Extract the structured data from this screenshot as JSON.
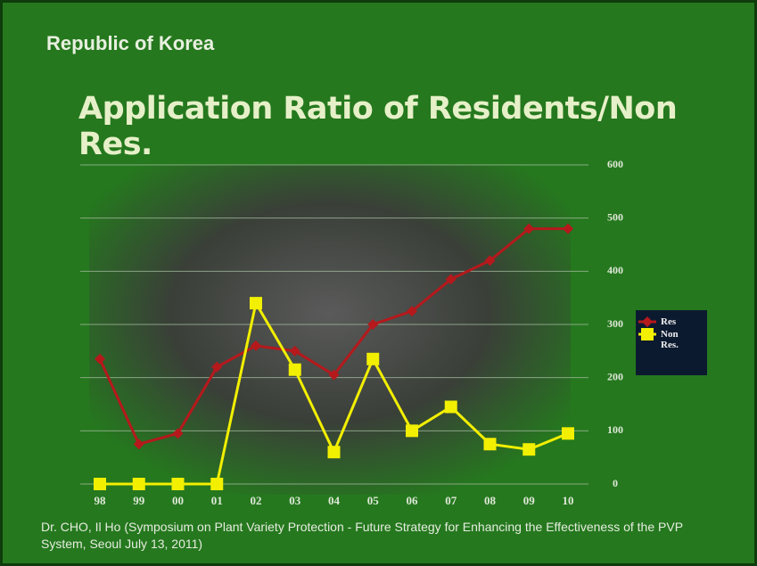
{
  "subtitle": "Republic of Korea",
  "chart_data": {
    "type": "line",
    "title": "Application Ratio of Residents/Non Res.",
    "categories": [
      "98",
      "99",
      "00",
      "01",
      "02",
      "03",
      "04",
      "05",
      "06",
      "07",
      "08",
      "09",
      "10"
    ],
    "series": [
      {
        "name": "Res",
        "color": "#b5191c",
        "values": [
          235,
          75,
          95,
          220,
          260,
          250,
          205,
          300,
          325,
          385,
          420,
          480,
          480
        ]
      },
      {
        "name": "Non Res.",
        "color": "#f2ef00",
        "values": [
          0,
          0,
          0,
          0,
          340,
          215,
          60,
          235,
          100,
          145,
          75,
          65,
          95
        ]
      }
    ],
    "ylim": [
      0,
      600
    ],
    "yticks": [
      0,
      100,
      200,
      300,
      400,
      500,
      600
    ],
    "grid": true,
    "legend": "right"
  },
  "footer": "Dr. CHO, Il Ho (Symposium  on Plant Variety Protection - Future Strategy for Enhancing the Effectiveness of the PVP System, Seoul July 13, 2011)"
}
